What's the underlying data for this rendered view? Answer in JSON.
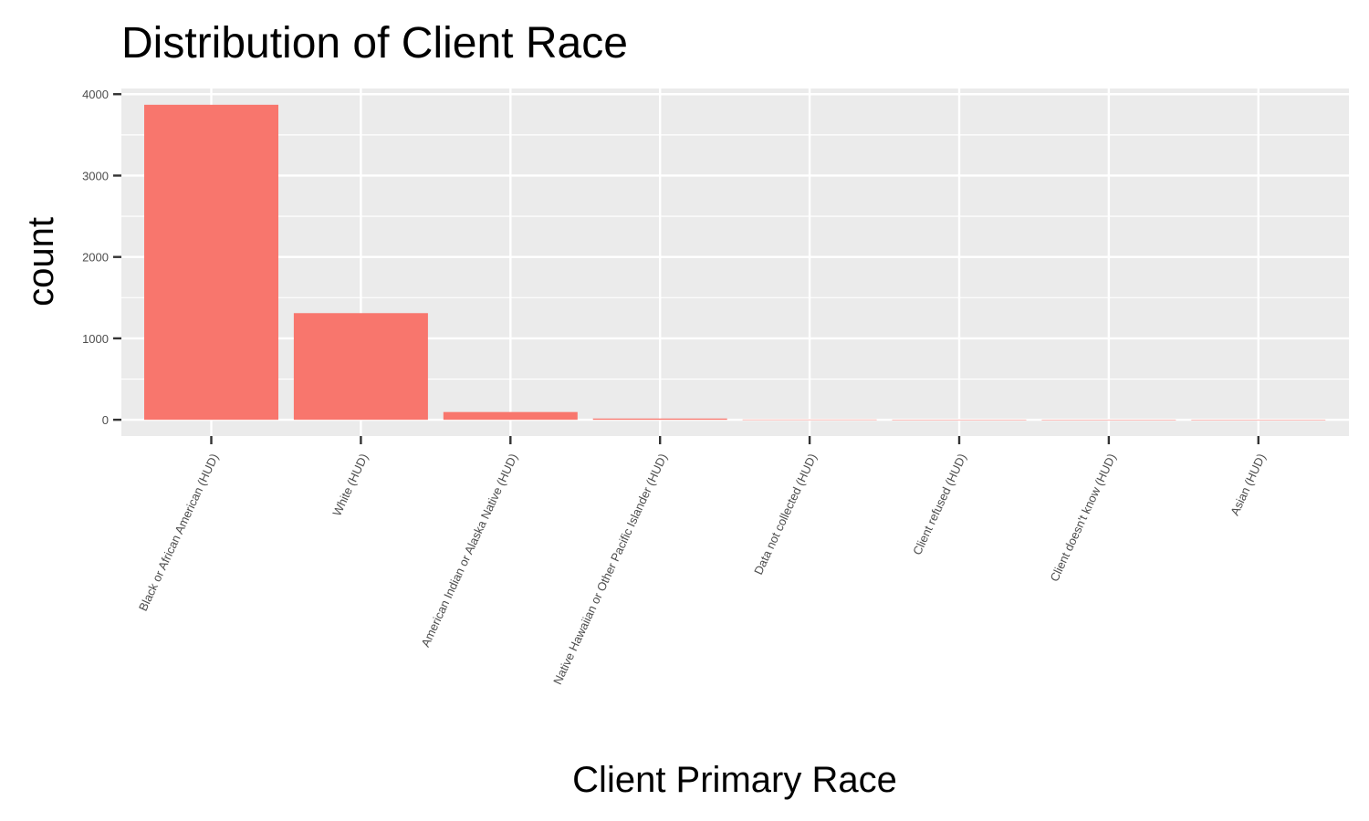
{
  "chart_data": {
    "type": "bar",
    "title": "Distribution of Client Race",
    "xlabel": "Client Primary Race",
    "ylabel": "count",
    "categories": [
      "Black or African American (HUD)",
      "White (HUD)",
      "American Indian or Alaska Native (HUD)",
      "Native Hawaiian or Other Pacific Islander (HUD)",
      "Data not collected (HUD)",
      "Client refused (HUD)",
      "Client doesn't know (HUD)",
      "Asian (HUD)"
    ],
    "values": [
      3870,
      1310,
      95,
      15,
      3,
      2,
      1,
      1
    ],
    "ylim": [
      -200,
      4070
    ],
    "yticks": [
      0,
      1000,
      2000,
      3000,
      4000
    ],
    "ytick_labels": [
      "0",
      "1000",
      "2000",
      "3000",
      "4000"
    ],
    "grid": true,
    "legend": "none",
    "colors": {
      "bar": "#F8766D",
      "panel": "#EBEBEB",
      "grid": "#FFFFFF",
      "tick": "#333333"
    }
  }
}
